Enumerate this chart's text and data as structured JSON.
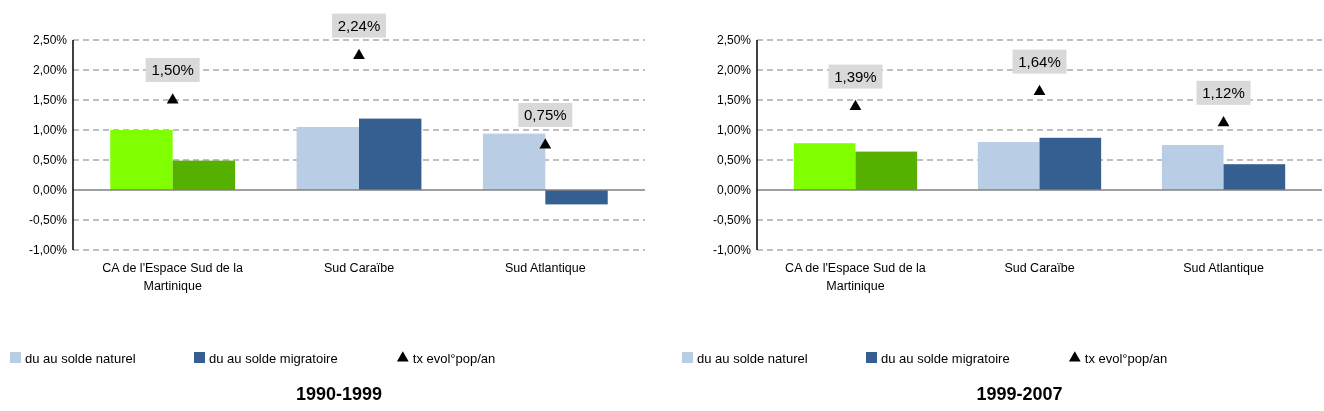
{
  "chart_data": [
    {
      "type": "bar",
      "title": "1990-1999",
      "categories": [
        "CA de l'Espace Sud de la Martinique",
        "Sud Caraïbe",
        "Sud Atlantique"
      ],
      "series": [
        {
          "name": "du au solde  naturel",
          "color": "#b9cde5",
          "colors": [
            "#80ff00",
            "#b9cde5",
            "#b9cde5"
          ],
          "values": [
            1.0,
            1.05,
            0.94
          ]
        },
        {
          "name": "du au solde  migratoire",
          "color": "#355f91",
          "colors": [
            "#55b000",
            "#355f91",
            "#355f91"
          ],
          "values": [
            0.49,
            1.19,
            -0.24
          ]
        },
        {
          "name": "tx evol°pop/an",
          "type": "scatter",
          "color": "#000000",
          "marker": "triangle",
          "values": [
            1.5,
            2.24,
            0.75
          ],
          "value_labels": [
            "1,50%",
            "2,24%",
            "0,75%"
          ]
        }
      ],
      "ylim": [
        -1,
        2.5
      ],
      "yticks": [
        {
          "value": -1,
          "label": "-1,00%"
        },
        {
          "value": -0.5,
          "label": "-0,50%"
        },
        {
          "value": 0,
          "label": "0,00%"
        },
        {
          "value": 0.5,
          "label": "0,50%"
        },
        {
          "value": 1,
          "label": "1,00%"
        },
        {
          "value": 1.5,
          "label": "1,50%"
        },
        {
          "value": 2,
          "label": "2,00%"
        },
        {
          "value": 2.5,
          "label": "2,50%"
        }
      ],
      "grid": "y",
      "legend": "bottom"
    },
    {
      "type": "bar",
      "title": "1999-2007",
      "categories": [
        "CA de l'Espace Sud de la Martinique",
        "Sud Caraïbe",
        "Sud Atlantique"
      ],
      "series": [
        {
          "name": "du au solde  naturel",
          "color": "#b9cde5",
          "colors": [
            "#80ff00",
            "#b9cde5",
            "#b9cde5"
          ],
          "values": [
            0.78,
            0.8,
            0.75
          ]
        },
        {
          "name": "du au solde  migratoire",
          "color": "#355f91",
          "colors": [
            "#55b000",
            "#355f91",
            "#355f91"
          ],
          "values": [
            0.64,
            0.87,
            0.43
          ]
        },
        {
          "name": "tx evol°pop/an",
          "type": "scatter",
          "color": "#000000",
          "marker": "triangle",
          "values": [
            1.39,
            1.64,
            1.12
          ],
          "value_labels": [
            "1,39%",
            "1,64%",
            "1,12%"
          ]
        }
      ],
      "ylim": [
        -1,
        2.5
      ],
      "yticks": [
        {
          "value": -1,
          "label": "-1,00%"
        },
        {
          "value": -0.5,
          "label": "-0,50%"
        },
        {
          "value": 0,
          "label": "0,00%"
        },
        {
          "value": 0.5,
          "label": "0,50%"
        },
        {
          "value": 1,
          "label": "1,00%"
        },
        {
          "value": 1.5,
          "label": "1,50%"
        },
        {
          "value": 2,
          "label": "2,00%"
        },
        {
          "value": 2.5,
          "label": "2,50%"
        }
      ],
      "grid": "y",
      "legend": "bottom"
    }
  ]
}
